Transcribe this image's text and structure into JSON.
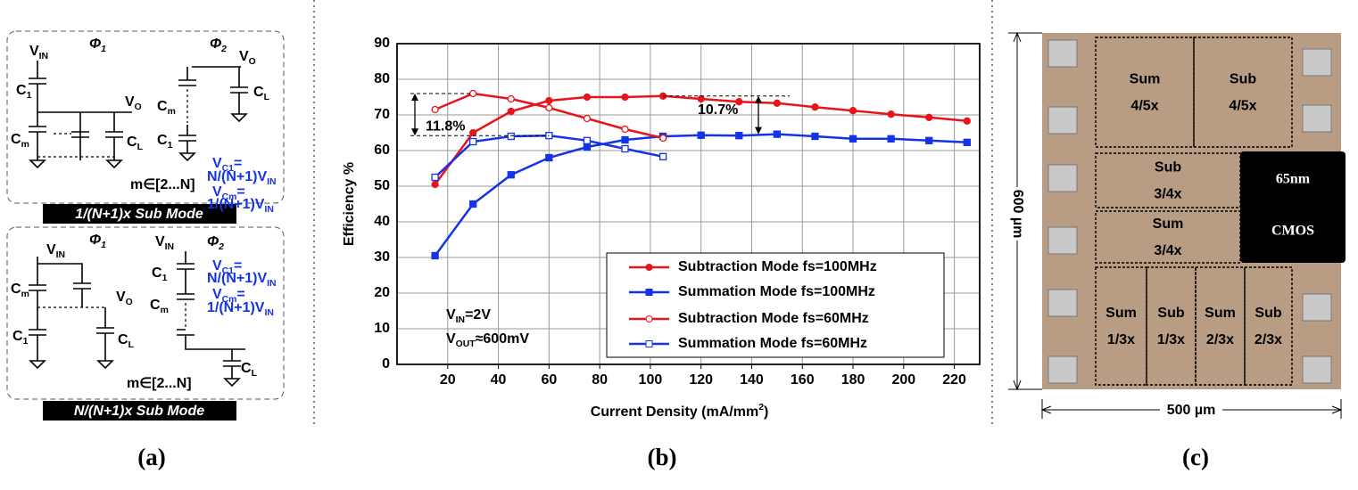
{
  "panel_a": {
    "top_labels": [
      {
        "t": "Φ",
        "s": "1"
      },
      {
        "t": "Φ",
        "s": "2"
      },
      {
        "t": "V",
        "s": "IN"
      },
      {
        "t": "V",
        "s": "O"
      },
      {
        "t": "C",
        "s": "1"
      },
      {
        "t": "V",
        "s": "O"
      },
      {
        "t": "C",
        "s": "m"
      },
      {
        "t": "C",
        "s": "L"
      },
      {
        "t": "C",
        "s": "m"
      },
      {
        "t": "C",
        "s": "1"
      },
      {
        "t": "C",
        "s": "L"
      },
      {
        "t": "V",
        "s": "C1",
        "r": "="
      },
      {
        "t": "N/(N+1)V",
        "s": "IN"
      },
      {
        "t": "V",
        "s": "Cm",
        "r": "="
      },
      {
        "t": "1/(N+1)V",
        "s": "IN"
      },
      {
        "t": "m∈[2...N]"
      }
    ],
    "bottom_labels": [
      {
        "t": "V",
        "s": "IN"
      },
      {
        "t": "Φ",
        "s": "1"
      },
      {
        "t": "V",
        "s": "IN"
      },
      {
        "t": "Φ",
        "s": "2"
      },
      {
        "t": "C",
        "s": "m"
      },
      {
        "t": "V",
        "s": "O"
      },
      {
        "t": "C",
        "s": "1"
      },
      {
        "t": "C",
        "s": "L"
      },
      {
        "t": "C",
        "s": "1"
      },
      {
        "t": "C",
        "s": "m"
      },
      {
        "t": "V",
        "s": "C1",
        "r": "="
      },
      {
        "t": "N/(N+1)V",
        "s": "IN"
      },
      {
        "t": "V",
        "s": "Cm",
        "r": "="
      },
      {
        "t": "1/(N+1)V",
        "s": "IN"
      },
      {
        "t": "C",
        "s": "L"
      },
      {
        "t": "m∈[2...N]"
      }
    ],
    "modes": [
      "1/(N+1)x Sub Mode",
      "N/(N+1)x Sub Mode"
    ]
  },
  "chart_data": {
    "type": "line",
    "x_label": {
      "t": "Current Density (mA/mm",
      "sup": "2",
      "r": ")"
    },
    "y_label": "Efficiency %",
    "x": [
      15,
      30,
      45,
      60,
      75,
      90,
      105,
      120,
      135,
      150,
      165,
      180,
      195,
      210,
      225
    ],
    "xlim": [
      0,
      230
    ],
    "xticks": [
      20,
      40,
      60,
      80,
      100,
      120,
      140,
      160,
      180,
      200,
      220
    ],
    "ylim": [
      0,
      90
    ],
    "yticks": [
      0,
      10,
      20,
      30,
      40,
      50,
      60,
      70,
      80,
      90
    ],
    "grid": true,
    "series": [
      {
        "name": "Subtraction Mode fs=100MHz",
        "color": "#e8141b",
        "marker": "circle",
        "filled": true,
        "values": [
          50.5,
          65,
          71,
          74,
          75,
          75,
          75.3,
          74.5,
          73.7,
          73.3,
          72.2,
          71.2,
          70.2,
          69.3,
          68.3
        ]
      },
      {
        "name": "Summation Mode fs=100MHz",
        "color": "#1432e6",
        "marker": "square",
        "filled": true,
        "values": [
          30.5,
          45,
          53.2,
          58,
          61,
          63,
          64,
          64.3,
          64.2,
          64.6,
          64,
          63.3,
          63.3,
          62.8,
          62.3
        ]
      },
      {
        "name": "Subtraction Mode fs=60MHz",
        "color": "#e8141b",
        "marker": "circle",
        "filled": false,
        "values": [
          71.5,
          76,
          74.5,
          72,
          69,
          66,
          63.5,
          null,
          null,
          null,
          null,
          null,
          null,
          null,
          null
        ]
      },
      {
        "name": "Summation Mode fs=60MHz",
        "color": "#1432e6",
        "marker": "square",
        "filled": false,
        "values": [
          52.5,
          62.5,
          64,
          64.2,
          62.8,
          60.5,
          58.3,
          null,
          null,
          null,
          null,
          null,
          null,
          null,
          null
        ]
      }
    ],
    "annotations": [
      "11.8%",
      "10.7%"
    ],
    "conditions": [
      {
        "t": "V",
        "s": "IN",
        "r": "=2V"
      },
      {
        "t": "V",
        "s": "OUT",
        "r": "≈600mV"
      }
    ]
  },
  "panel_c": {
    "blocks": [
      [
        "Sum",
        "4/5x"
      ],
      [
        "Sub",
        "4/5x"
      ],
      [
        "Sub",
        "3/4x"
      ],
      [
        "Sum",
        "3/4x"
      ],
      [
        "Sum",
        "1/3x"
      ],
      [
        "Sub",
        "1/3x"
      ],
      [
        "Sum",
        "2/3x"
      ],
      [
        "Sub",
        "2/3x"
      ]
    ],
    "process": [
      "65nm",
      "CMOS"
    ],
    "height": "600 µm",
    "width": "500 µm"
  },
  "captions": [
    "(a)",
    "(b)",
    "(c)"
  ]
}
